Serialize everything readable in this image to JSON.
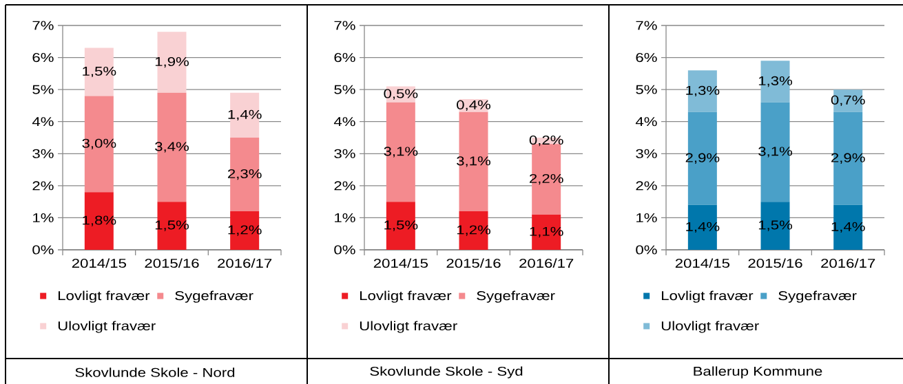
{
  "chart_data": [
    {
      "type": "bar",
      "title": "Skovlunde Skole - Nord",
      "categories": [
        "2014/15",
        "2015/16",
        "2016/17"
      ],
      "stacked": true,
      "series": [
        {
          "name": "Lovligt fravær",
          "color": "#ed1c24",
          "values": [
            1.8,
            1.5,
            1.2
          ],
          "value_labels": [
            "1,8%",
            "1,5%",
            "1,2%"
          ]
        },
        {
          "name": "Sygefravær",
          "color": "#f48a8e",
          "values": [
            3.0,
            3.4,
            2.3
          ],
          "value_labels": [
            "3,0%",
            "3,4%",
            "2,3%"
          ]
        },
        {
          "name": "Ulovligt fravær",
          "color": "#f9d1d3",
          "values": [
            1.5,
            1.9,
            1.4
          ],
          "value_labels": [
            "1,5%",
            "1,9%",
            "1,4%"
          ]
        }
      ],
      "ylim": [
        0,
        7
      ],
      "yticks": [
        {
          "value": 0,
          "label": "0%"
        },
        {
          "value": 1,
          "label": "1%"
        },
        {
          "value": 2,
          "label": "2%"
        },
        {
          "value": 3,
          "label": "3%"
        },
        {
          "value": 4,
          "label": "4%"
        },
        {
          "value": 5,
          "label": "5%"
        },
        {
          "value": 6,
          "label": "6%"
        },
        {
          "value": 7,
          "label": "7%"
        }
      ],
      "grid": "y",
      "legend": "bottom"
    },
    {
      "type": "bar",
      "title": "Skovlunde Skole - Syd",
      "categories": [
        "2014/15",
        "2015/16",
        "2016/17"
      ],
      "stacked": true,
      "series": [
        {
          "name": "Lovligt fravær",
          "color": "#ed1c24",
          "values": [
            1.5,
            1.2,
            1.1
          ],
          "value_labels": [
            "1,5%",
            "1,2%",
            "1,1%"
          ]
        },
        {
          "name": "Sygefravær",
          "color": "#f48a8e",
          "values": [
            3.1,
            3.1,
            2.2
          ],
          "value_labels": [
            "3,1%",
            "3,1%",
            "2,2%"
          ]
        },
        {
          "name": "Ulovligt fravær",
          "color": "#f9d1d3",
          "values": [
            0.5,
            0.4,
            0.2
          ],
          "value_labels": [
            "0,5%",
            "0,4%",
            "0,2%"
          ]
        }
      ],
      "ylim": [
        0,
        7
      ],
      "yticks": [
        {
          "value": 0,
          "label": "0%"
        },
        {
          "value": 1,
          "label": "1%"
        },
        {
          "value": 2,
          "label": "2%"
        },
        {
          "value": 3,
          "label": "3%"
        },
        {
          "value": 4,
          "label": "4%"
        },
        {
          "value": 5,
          "label": "5%"
        },
        {
          "value": 6,
          "label": "6%"
        },
        {
          "value": 7,
          "label": "7%"
        }
      ],
      "grid": "y",
      "legend": "bottom"
    },
    {
      "type": "bar",
      "title": "Ballerup Kommune",
      "categories": [
        "2014/15",
        "2015/16",
        "2016/17"
      ],
      "stacked": true,
      "series": [
        {
          "name": "Lovligt fravær",
          "color": "#0077ac",
          "values": [
            1.4,
            1.5,
            1.4
          ],
          "value_labels": [
            "1,4%",
            "1,5%",
            "1,4%"
          ]
        },
        {
          "name": "Sygefravær",
          "color": "#4aa0c8",
          "values": [
            2.9,
            3.1,
            2.9
          ],
          "value_labels": [
            "2,9%",
            "3,1%",
            "2,9%"
          ]
        },
        {
          "name": "Ulovligt fravær",
          "color": "#80bbd7",
          "values": [
            1.3,
            1.3,
            0.7
          ],
          "value_labels": [
            "1,3%",
            "1,3%",
            "0,7%"
          ]
        }
      ],
      "ylim": [
        0,
        7
      ],
      "yticks": [
        {
          "value": 0,
          "label": "0%"
        },
        {
          "value": 1,
          "label": "1%"
        },
        {
          "value": 2,
          "label": "2%"
        },
        {
          "value": 3,
          "label": "3%"
        },
        {
          "value": 4,
          "label": "4%"
        },
        {
          "value": 5,
          "label": "5%"
        },
        {
          "value": 6,
          "label": "6%"
        },
        {
          "value": 7,
          "label": "7%"
        }
      ],
      "grid": "y",
      "legend": "bottom"
    }
  ]
}
